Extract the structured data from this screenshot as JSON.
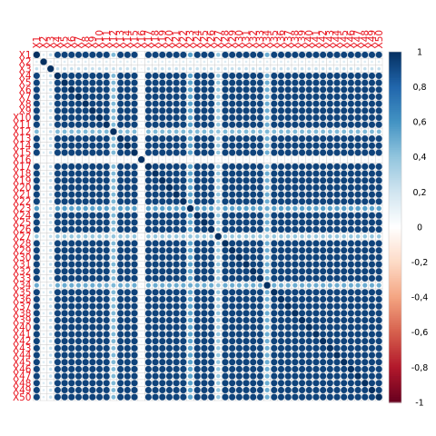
{
  "chart_data": {
    "type": "heatmap",
    "title": "",
    "xlabel": "",
    "ylabel": "",
    "variables": [
      "X1",
      "X2",
      "X3",
      "X4",
      "X5",
      "X6",
      "X7",
      "X8",
      "X9",
      "X10",
      "X11",
      "X12",
      "X13",
      "X14",
      "X15",
      "X16",
      "X17",
      "X18",
      "X19",
      "X20",
      "X21",
      "X22",
      "X23",
      "X24",
      "X25",
      "X26",
      "X27",
      "X28",
      "X29",
      "X30",
      "X31",
      "X32",
      "X33",
      "X34",
      "X35",
      "X36",
      "X37",
      "X38",
      "X39",
      "X40",
      "X41",
      "X42",
      "X43",
      "X44",
      "X45",
      "X46",
      "X47",
      "X48",
      "X49",
      "X50"
    ],
    "default_correlation": 0.93,
    "diagonal_value": 1.0,
    "weak_variables": [
      {
        "name": "X2",
        "correlation_with_others": 0.15
      },
      {
        "name": "X3",
        "correlation_with_others": 0.25
      },
      {
        "name": "X12",
        "correlation_with_others": 0.45
      },
      {
        "name": "X16",
        "correlation_with_others": 0.08
      },
      {
        "name": "X23",
        "correlation_with_others": 0.55
      },
      {
        "name": "X27",
        "correlation_with_others": 0.4
      },
      {
        "name": "X34",
        "correlation_with_others": 0.5
      }
    ],
    "colorbar": {
      "range": [
        -1,
        1
      ],
      "ticks": [
        "1",
        "0,8",
        "0,6",
        "0,4",
        "0,2",
        "0",
        "-0,2",
        "-0,4",
        "-0,6",
        "-0,8",
        "-1"
      ],
      "colors": [
        "#67001f",
        "#b2182b",
        "#d6604d",
        "#f4a582",
        "#fddbc7",
        "#ffffff",
        "#d1e5f0",
        "#92c5de",
        "#4393c3",
        "#2166ac",
        "#053061"
      ]
    },
    "label_color": "#e8111c",
    "grid": true
  }
}
